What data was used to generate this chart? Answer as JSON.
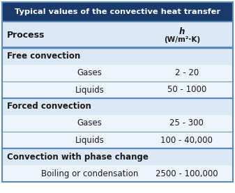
{
  "title": "Typical values of the convective heat transfer",
  "title_bg": "#1a3a6b",
  "title_color": "#ffffff",
  "header_col1": "Process",
  "header_col2_line1": "h",
  "header_col2_line2": "(W/m²·K)",
  "header_bg": "#dce8f5",
  "section_bg": "#dce8f5",
  "row_bg": "#eef4fb",
  "section_color": "#1a1a1a",
  "row_color": "#1a1a1a",
  "line_color": "#5b8ab5",
  "outer_border_color": "#5b8ab5",
  "rows": [
    {
      "type": "section",
      "col1": "Free convection",
      "col2": ""
    },
    {
      "type": "data",
      "col1": "Gases",
      "col2": "2 - 20"
    },
    {
      "type": "data",
      "col1": "Liquids",
      "col2": "50 - 1000"
    },
    {
      "type": "section",
      "col1": "Forced convection",
      "col2": ""
    },
    {
      "type": "data",
      "col1": "Gases",
      "col2": "25 - 300"
    },
    {
      "type": "data",
      "col1": "Liquids",
      "col2": "100 - 40,000"
    },
    {
      "type": "section",
      "col1": "Convection with phase change",
      "col2": ""
    },
    {
      "type": "data",
      "col1": "Boiling or condensation",
      "col2": "2500 - 100,000"
    }
  ],
  "figw": 3.37,
  "figh": 2.77,
  "dpi": 100
}
